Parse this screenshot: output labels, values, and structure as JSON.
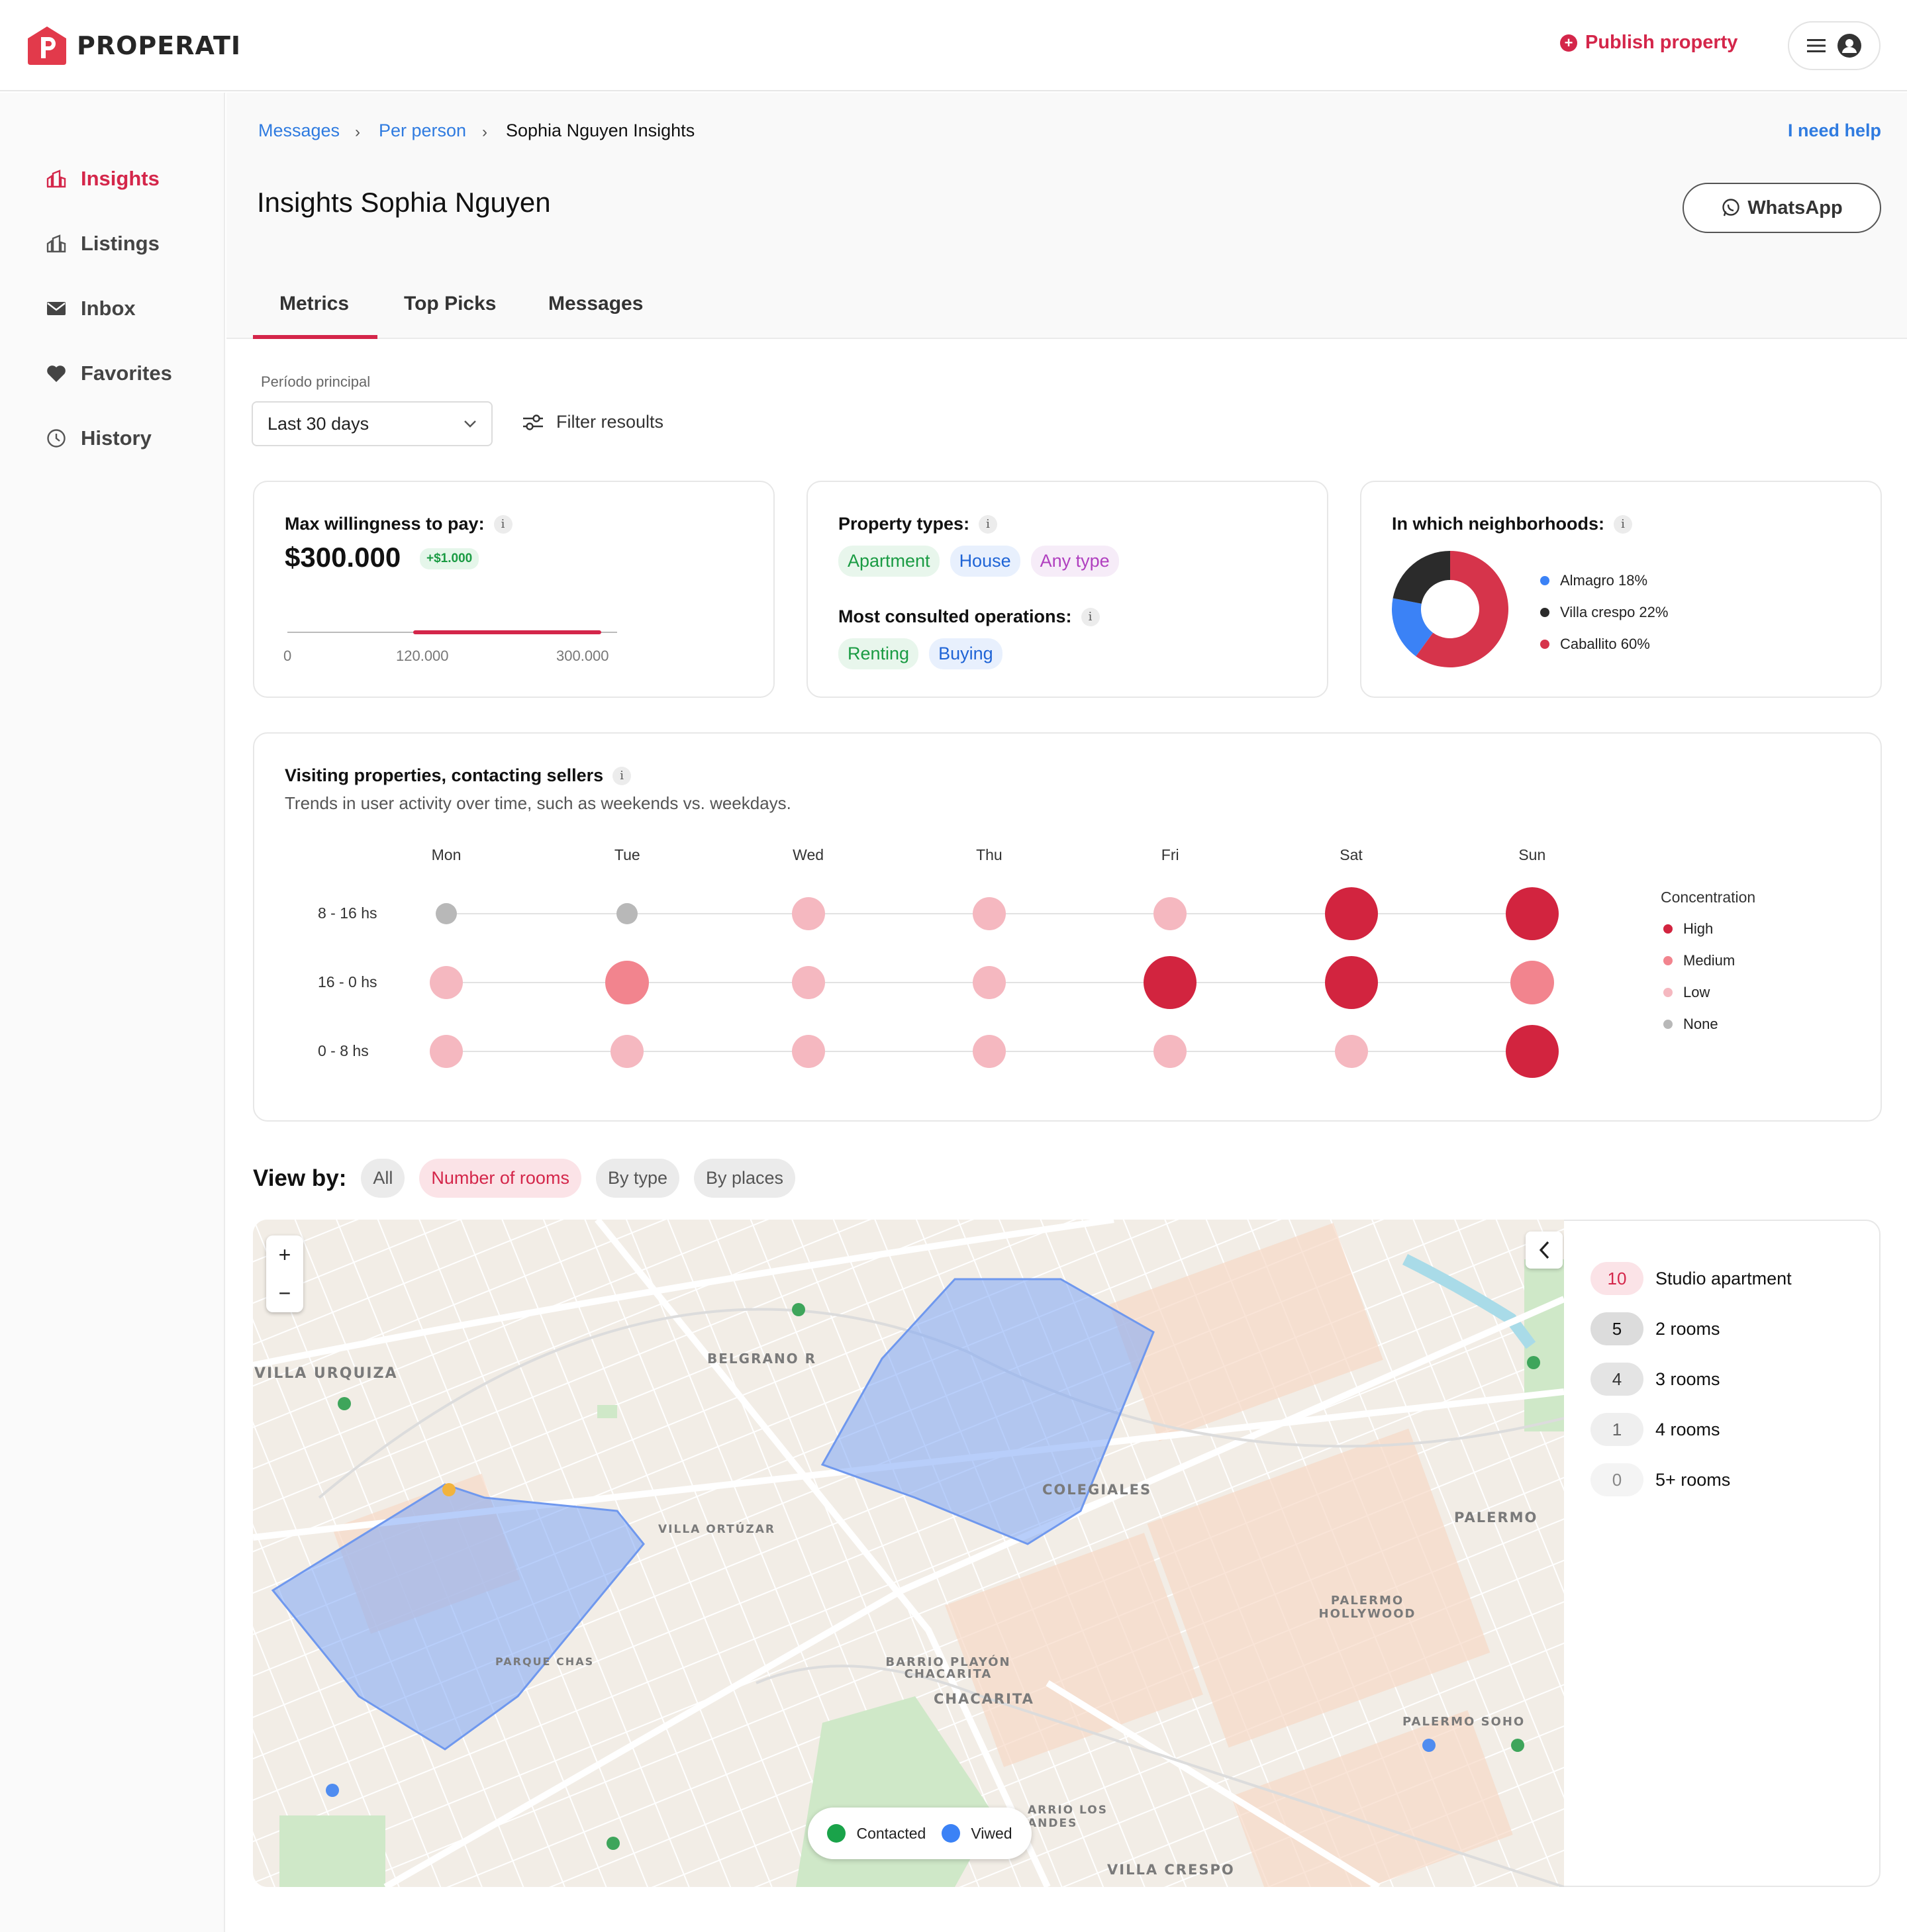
{
  "brand": {
    "name": "PROPERATI",
    "accent": "#d4264a"
  },
  "topbar": {
    "publish_label": "Publish property",
    "menu_icon": "hamburger-icon",
    "avatar_icon": "user-icon"
  },
  "sidebar": {
    "items": [
      {
        "label": "Insights",
        "icon": "insights-icon",
        "active": true
      },
      {
        "label": "Listings",
        "icon": "listings-icon",
        "active": false
      },
      {
        "label": "Inbox",
        "icon": "inbox-icon",
        "active": false
      },
      {
        "label": "Favorites",
        "icon": "heart-icon",
        "active": false
      },
      {
        "label": "History",
        "icon": "clock-icon",
        "active": false
      }
    ]
  },
  "breadcrumb": {
    "items": [
      "Messages",
      "Per person",
      "Sophia Nguyen Insights"
    ]
  },
  "help_label": "I need help",
  "page_title": "Insights Sophia Nguyen",
  "whatsapp_label": "WhatsApp",
  "tabs": [
    {
      "label": "Metrics",
      "active": true
    },
    {
      "label": "Top Picks",
      "active": false
    },
    {
      "label": "Messages",
      "active": false
    }
  ],
  "period": {
    "label": "Período principal",
    "value": "Last 30 days"
  },
  "filter_label": "Filter resoults",
  "willingness": {
    "title": "Max willingness to pay:",
    "value": "$300.000",
    "delta": "+$1.000",
    "range_labels": [
      "0",
      "120.000",
      "300.000"
    ],
    "range_min": 0,
    "range_low": 120000,
    "range_high": 300000
  },
  "property_types": {
    "title": "Property types:",
    "chips": [
      "Apartment",
      "House",
      "Any type"
    ]
  },
  "operations": {
    "title": "Most consulted operations:",
    "chips": [
      "Renting",
      "Buying"
    ]
  },
  "neighborhoods": {
    "title": "In which neighborhoods:",
    "items": [
      {
        "label": "Almagro 18%",
        "percent": 18,
        "color": "#3b82f6"
      },
      {
        "label": "Villa crespo 22%",
        "percent": 22,
        "color": "#2b2b2b"
      },
      {
        "label": "Caballito 60%",
        "percent": 60,
        "color": "#d6344b"
      }
    ]
  },
  "activity": {
    "title": "Visiting properties, contacting sellers",
    "subtitle": "Trends in user activity over time, such as weekends vs. weekdays.",
    "days": [
      "Mon",
      "Tue",
      "Wed",
      "Thu",
      "Fri",
      "Sat",
      "Sun"
    ],
    "slots": [
      "8 - 16 hs",
      "16 - 0 hs",
      "0 -  8 hs"
    ],
    "levels": [
      [
        "None",
        "None",
        "Low",
        "Low",
        "Low",
        "High",
        "High"
      ],
      [
        "Low",
        "Medium",
        "Low",
        "Low",
        "High",
        "High",
        "Medium"
      ],
      [
        "Low",
        "Low",
        "Low",
        "Low",
        "Low",
        "Low",
        "High"
      ]
    ],
    "legend_title": "Concentration",
    "legend": [
      {
        "label": "High",
        "color": "#d2243f"
      },
      {
        "label": "Medium",
        "color": "#f2848e"
      },
      {
        "label": "Low",
        "color": "#f5b8c0"
      },
      {
        "label": "None",
        "color": "#b8b8b8"
      }
    ]
  },
  "view_by": {
    "label": "View by:",
    "options": [
      "All",
      "Number of rooms",
      "By type",
      "By places"
    ],
    "active": "Number of rooms"
  },
  "rooms": [
    {
      "count": "10",
      "label": "Studio apartment"
    },
    {
      "count": "5",
      "label": "2 rooms"
    },
    {
      "count": "4",
      "label": "3 rooms"
    },
    {
      "count": "1",
      "label": "4 rooms"
    },
    {
      "count": "0",
      "label": "5+ rooms"
    }
  ],
  "map": {
    "zoom_in": "+",
    "zoom_out": "−",
    "labels": [
      "VILLA URQUIZA",
      "BELGRANO R",
      "COLEGIALES",
      "VILLA ORTÚZAR",
      "PALERMO",
      "PARQUE CHAS",
      "BARRIO PLAYÓN CHACARITA",
      "CHACARITA",
      "PALERMO HOLLYWOOD",
      "PALERMO SOHO",
      "VILLA CRESPO",
      "ARRIO LOS ANDES"
    ],
    "legend": [
      {
        "label": "Contacted",
        "color": "#1aa34a"
      },
      {
        "label": "Viwed",
        "color": "#3b82f6"
      }
    ]
  }
}
